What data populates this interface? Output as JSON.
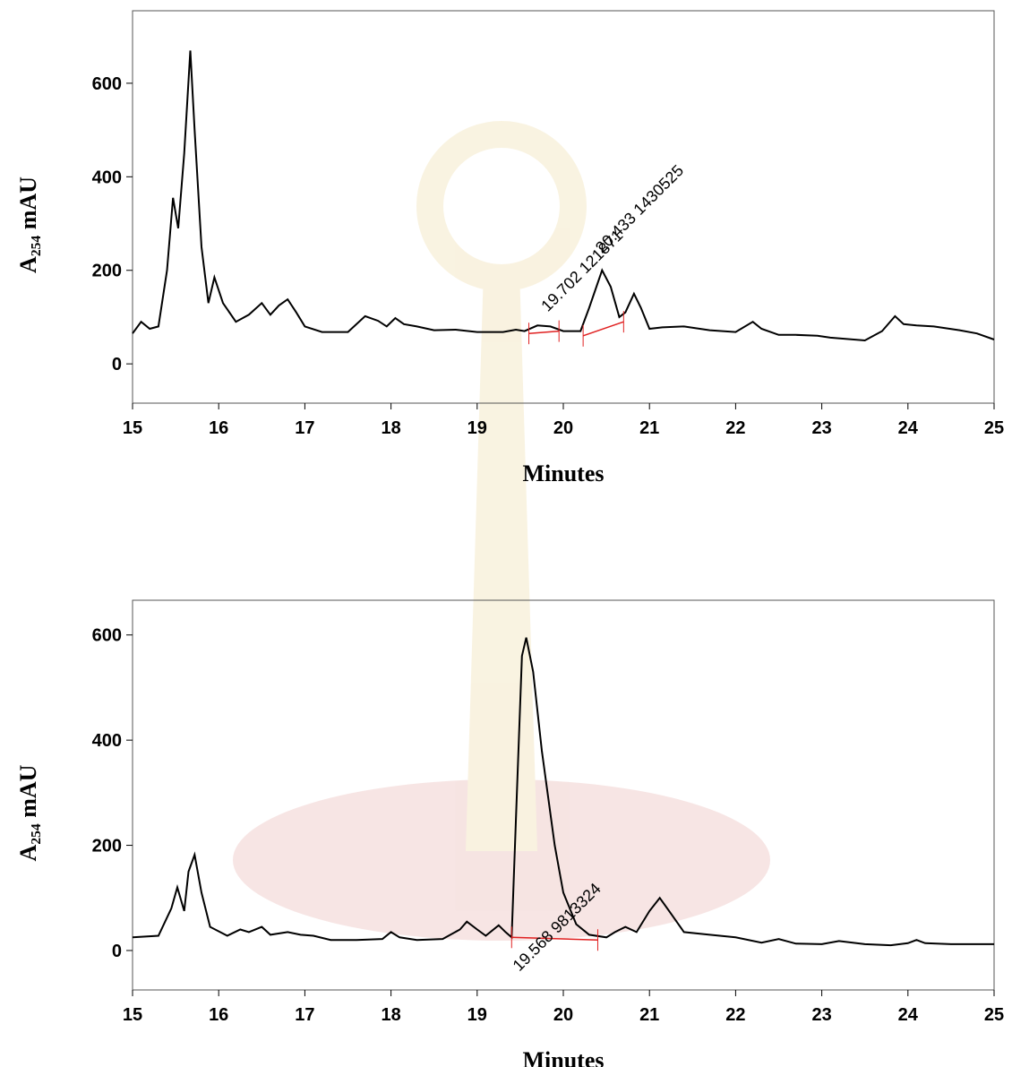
{
  "chart_data": [
    {
      "type": "line",
      "xlabel": "Minutes",
      "ylabel": "A₂₅₄ mAU",
      "xlim": [
        15,
        25
      ],
      "ylim": [
        -84,
        755
      ],
      "xticks": [
        15,
        16,
        17,
        18,
        19,
        20,
        21,
        22,
        23,
        24,
        25
      ],
      "yticks": [
        0,
        200,
        400,
        600
      ],
      "series": [
        {
          "color": "#000000",
          "x": [
            15.0,
            15.1,
            15.2,
            15.3,
            15.4,
            15.47,
            15.53,
            15.6,
            15.67,
            15.72,
            15.8,
            15.88,
            15.95,
            16.05,
            16.2,
            16.35,
            16.5,
            16.6,
            16.7,
            16.8,
            16.9,
            17.0,
            17.2,
            17.5,
            17.7,
            17.85,
            17.95,
            18.05,
            18.15,
            18.3,
            18.5,
            18.75,
            19.0,
            19.3,
            19.45,
            19.55,
            19.7,
            19.85,
            20.0,
            20.2,
            20.3,
            20.45,
            20.55,
            20.65,
            20.72,
            20.82,
            20.9,
            21.0,
            21.15,
            21.4,
            21.7,
            22.0,
            22.2,
            22.3,
            22.5,
            22.7,
            22.95,
            23.1,
            23.5,
            23.7,
            23.85,
            23.95,
            24.1,
            24.3,
            24.6,
            24.8,
            25.0
          ],
          "values": [
            65,
            90,
            75,
            80,
            200,
            355,
            290,
            450,
            670,
            500,
            250,
            130,
            185,
            130,
            90,
            105,
            130,
            105,
            125,
            138,
            110,
            80,
            68,
            68,
            102,
            92,
            80,
            98,
            85,
            80,
            72,
            73,
            68,
            68,
            73,
            70,
            82,
            80,
            70,
            70,
            120,
            200,
            165,
            100,
            110,
            150,
            120,
            75,
            78,
            80,
            72,
            68,
            90,
            75,
            62,
            62,
            60,
            56,
            50,
            70,
            102,
            85,
            82,
            80,
            72,
            65,
            52
          ]
        }
      ],
      "annotations": [
        {
          "text": "19.702 121871",
          "x": 19.82,
          "y": 110,
          "baseline_x": [
            19.6,
            19.95
          ],
          "baseline_y": [
            65,
            70
          ]
        },
        {
          "text": "20.433 1430525",
          "x": 20.45,
          "y": 235,
          "baseline_x": [
            20.23,
            20.7
          ],
          "baseline_y": [
            60,
            90
          ]
        }
      ]
    },
    {
      "type": "line",
      "xlabel": "Minutes",
      "ylabel": "A₂₅₄ mAU",
      "xlim": [
        15,
        25
      ],
      "ylim": [
        -75,
        666
      ],
      "xticks": [
        15,
        16,
        17,
        18,
        19,
        20,
        21,
        22,
        23,
        24,
        25
      ],
      "yticks": [
        0,
        200,
        400,
        600
      ],
      "series": [
        {
          "color": "#000000",
          "x": [
            15.0,
            15.3,
            15.45,
            15.52,
            15.6,
            15.65,
            15.72,
            15.8,
            15.9,
            16.1,
            16.25,
            16.35,
            16.5,
            16.6,
            16.8,
            16.95,
            17.1,
            17.3,
            17.6,
            17.9,
            18.0,
            18.1,
            18.3,
            18.6,
            18.8,
            18.88,
            19.0,
            19.1,
            19.25,
            19.33,
            19.4,
            19.45,
            19.52,
            19.57,
            19.65,
            19.75,
            19.9,
            20.0,
            20.15,
            20.3,
            20.5,
            20.6,
            20.72,
            20.85,
            21.0,
            21.12,
            21.25,
            21.4,
            21.7,
            22.0,
            22.3,
            22.5,
            22.7,
            23.0,
            23.2,
            23.5,
            23.8,
            24.0,
            24.1,
            24.2,
            24.5,
            25.0
          ],
          "values": [
            25,
            28,
            80,
            120,
            75,
            150,
            182,
            110,
            45,
            28,
            40,
            35,
            45,
            30,
            35,
            30,
            28,
            20,
            20,
            22,
            35,
            25,
            20,
            22,
            40,
            55,
            40,
            28,
            48,
            35,
            25,
            250,
            560,
            595,
            530,
            380,
            200,
            110,
            50,
            30,
            25,
            35,
            45,
            35,
            75,
            100,
            70,
            35,
            30,
            25,
            15,
            22,
            13,
            12,
            18,
            12,
            10,
            14,
            20,
            14,
            12,
            12
          ]
        }
      ],
      "annotations": [
        {
          "text": "19.568 9813324",
          "x": 19.49,
          "y": -41,
          "baseline_x": [
            19.4,
            20.4
          ],
          "baseline_y": [
            25,
            20
          ]
        }
      ]
    }
  ]
}
